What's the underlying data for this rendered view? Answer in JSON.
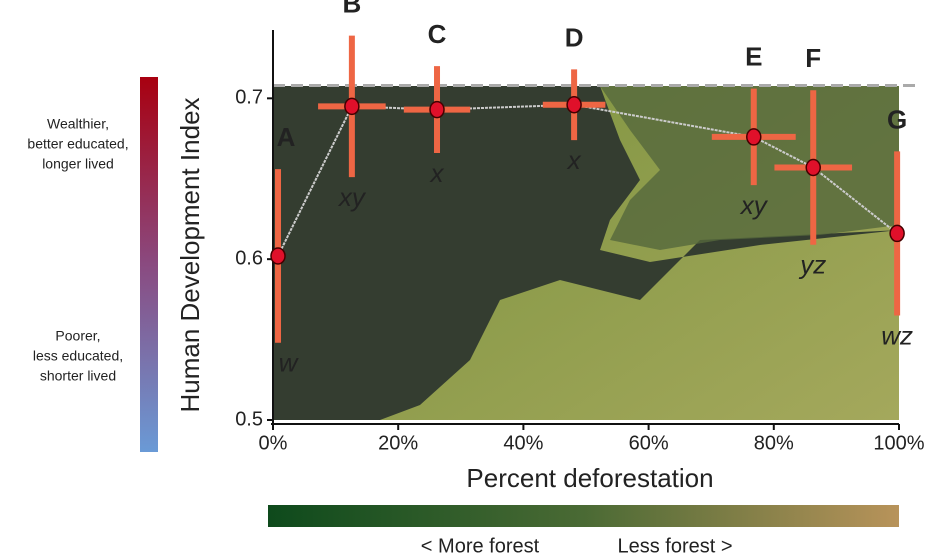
{
  "chart_data": {
    "type": "scatter",
    "xlabel": "Percent deforestation",
    "ylabel": "Human Development Index",
    "xlim": [
      0,
      100
    ],
    "ylim": [
      0.5,
      0.74
    ],
    "xticks": [
      {
        "value": 0,
        "label": "0%"
      },
      {
        "value": 20,
        "label": "20%"
      },
      {
        "value": 40,
        "label": "40%"
      },
      {
        "value": 60,
        "label": "60%"
      },
      {
        "value": 80,
        "label": "80%"
      },
      {
        "value": 100,
        "label": "100%"
      }
    ],
    "yticks": [
      0.5,
      0.6,
      0.7
    ],
    "reference_line": 0.708,
    "series": [
      {
        "color": "#e0102a",
        "errorbar_color": "#ee6644",
        "point_labels": [
          "A",
          "B",
          "C",
          "D",
          "E",
          "F",
          "G"
        ],
        "significance_labels": [
          "w",
          "xy",
          "x",
          "x",
          "xy",
          "yz",
          "wz"
        ],
        "x": [
          0.8,
          12.6,
          26.2,
          48.1,
          76.8,
          86.3,
          99.7
        ],
        "values": [
          0.602,
          0.695,
          0.693,
          0.696,
          0.676,
          0.657,
          0.616
        ],
        "xerr": [
          null,
          5.4,
          5.3,
          5,
          6.7,
          6.2,
          null
        ],
        "yerr": [
          0.054,
          0.044,
          0.027,
          0.022,
          0.03,
          0.048,
          0.051
        ]
      }
    ],
    "colorbar": {
      "top_label": [
        "Wealthier,",
        "better educated,",
        "longer lived"
      ],
      "bottom_label": [
        "Poorer,",
        "less educated,",
        "shorter lived"
      ]
    },
    "forest_bar": {
      "left_label": "< More forest",
      "right_label": "Less forest >"
    }
  }
}
